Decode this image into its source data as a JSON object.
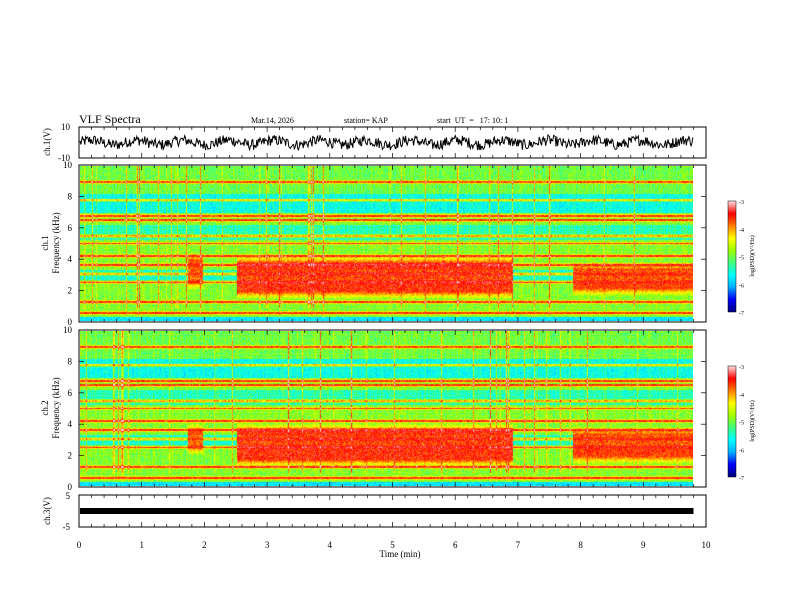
{
  "header": {
    "title": "VLF Spectra",
    "date": "Mar.14, 2026",
    "station": "station= KAP",
    "start": "start  UT  =   17: 10: 1"
  },
  "colors": {
    "line": "#000000",
    "background": "#ffffff",
    "colormap": [
      "#000080",
      "#0000ff",
      "#00b0ff",
      "#00ffff",
      "#40ff80",
      "#a0ff00",
      "#ffff00",
      "#ff8000",
      "#ff0000",
      "#ffd8d8"
    ]
  },
  "chart_data": [
    {
      "type": "line",
      "panel": "ch1-waveform",
      "ylabel": "ch.1(V)",
      "ylim": [
        -10,
        10
      ],
      "yticks": [
        "10",
        "-10"
      ],
      "xlim": [
        0,
        9.8
      ],
      "description_values": "noisy waveform, amplitude about ±4 V around 0"
    },
    {
      "type": "heatmap",
      "panel": "ch1-spectrogram",
      "ylabel_top": "ch.1",
      "ylabel": "Frequency (kHz)",
      "ylim": [
        0,
        10
      ],
      "yticks": [
        "0",
        "2",
        "4",
        "6",
        "8",
        "10"
      ],
      "xlim": [
        0,
        9.8
      ],
      "colorbar": {
        "label": "log(PSD)(V²/Hz)",
        "ticks": [
          "-3",
          "-4",
          "-5",
          "-6",
          "-7"
        ],
        "range": [
          -7,
          -3
        ]
      },
      "bursts": [
        {
          "t_start": 1.72,
          "t_end": 1.95,
          "f_low": 2.0,
          "f_high": 4.4,
          "level": -3.6
        },
        {
          "t_start": 2.5,
          "t_end": 6.9,
          "f_low": 1.4,
          "f_high": 4.2,
          "level": -3.4
        },
        {
          "t_start": 7.85,
          "t_end": 9.8,
          "f_low": 1.6,
          "f_high": 3.8,
          "level": -3.5
        }
      ]
    },
    {
      "type": "heatmap",
      "panel": "ch2-spectrogram",
      "ylabel_top": "ch.2",
      "ylabel": "Frequency (kHz)",
      "ylim": [
        0,
        10
      ],
      "yticks": [
        "0",
        "2",
        "4",
        "6",
        "8",
        "10"
      ],
      "xlim": [
        0,
        9.8
      ],
      "colorbar": {
        "label": "log(PSD)(V²/Hz)",
        "ticks": [
          "-3",
          "-4",
          "-5",
          "-6",
          "-7"
        ],
        "range": [
          -7,
          -3
        ]
      },
      "bursts": [
        {
          "t_start": 1.72,
          "t_end": 1.95,
          "f_low": 2.0,
          "f_high": 4.0,
          "level": -3.6
        },
        {
          "t_start": 2.5,
          "t_end": 6.9,
          "f_low": 1.2,
          "f_high": 4.0,
          "level": -3.4
        },
        {
          "t_start": 7.85,
          "t_end": 9.8,
          "f_low": 1.4,
          "f_high": 3.8,
          "level": -3.5
        }
      ]
    },
    {
      "type": "line",
      "panel": "ch3-waveform",
      "ylabel": "ch.3(V)",
      "ylim": [
        -5,
        5
      ],
      "yticks": [
        "5",
        "-5"
      ],
      "xlim": [
        0,
        9.8
      ],
      "description_values": "constant level about -1 V"
    }
  ],
  "xaxis": {
    "label": "Time (min)",
    "ticks": [
      "0",
      "1",
      "2",
      "3",
      "4",
      "5",
      "6",
      "7",
      "8",
      "9",
      "10"
    ],
    "range": [
      0,
      10
    ]
  }
}
